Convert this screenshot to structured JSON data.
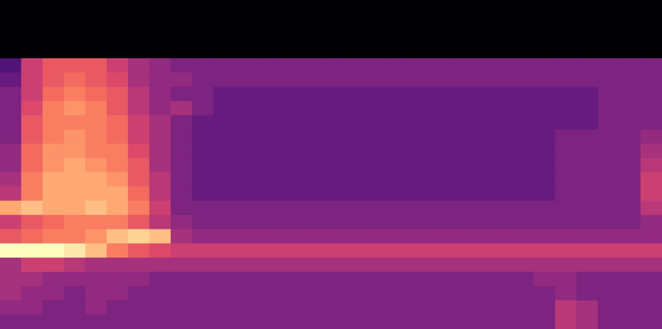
{
  "chart_data": {
    "type": "heatmap",
    "tick_labels": false,
    "zlim": [
      0,
      10
    ],
    "cells": [
      [
        2,
        5,
        6,
        6,
        6,
        5,
        4,
        3.5,
        3,
        3,
        3,
        3,
        3,
        3,
        3,
        3,
        3,
        3,
        3,
        3,
        3,
        3,
        3,
        3,
        3,
        3,
        3,
        3,
        3,
        3,
        3
      ],
      [
        2.5,
        5,
        6,
        6.5,
        6,
        5.5,
        4,
        3.5,
        3.5,
        3,
        3,
        3,
        3,
        3,
        3,
        3,
        3,
        3,
        3,
        3,
        3,
        3,
        3,
        3,
        3,
        3,
        3,
        3,
        3,
        3,
        3
      ],
      [
        3,
        5,
        6.5,
        7,
        6.5,
        6,
        4.5,
        3.5,
        3,
        3,
        2.5,
        2.5,
        2.5,
        2.5,
        2.5,
        2.5,
        2.5,
        2.5,
        2.5,
        2.5,
        2.5,
        2.5,
        2.5,
        2.5,
        2.5,
        2.5,
        2.5,
        2.5,
        3,
        3,
        3
      ],
      [
        3,
        5.5,
        7,
        7.5,
        7,
        6,
        4.5,
        3.5,
        4,
        3,
        2.5,
        2.5,
        2.5,
        2.5,
        2.5,
        2.5,
        2.5,
        2.5,
        2.5,
        2.5,
        2.5,
        2.5,
        2.5,
        2.5,
        2.5,
        2.5,
        2.5,
        2.5,
        3,
        3,
        3
      ],
      [
        3,
        6,
        7,
        7,
        7,
        6.5,
        5,
        4,
        3,
        2.5,
        2.5,
        2.5,
        2.5,
        2.5,
        2.5,
        2.5,
        2.5,
        2.5,
        2.5,
        2.5,
        2.5,
        2.5,
        2.5,
        2.5,
        2.5,
        2.5,
        2.5,
        2.5,
        3,
        3,
        3
      ],
      [
        3,
        6,
        7,
        7.5,
        7,
        6.5,
        5,
        4,
        3,
        2.5,
        2.5,
        2.5,
        2.5,
        2.5,
        2.5,
        2.5,
        2.5,
        2.5,
        2.5,
        2.5,
        2.5,
        2.5,
        2.5,
        2.5,
        2.5,
        2.5,
        3,
        3,
        3,
        3,
        3.5
      ],
      [
        3.5,
        6.5,
        7.5,
        7.5,
        7,
        7,
        5.5,
        4,
        3,
        2.5,
        2.5,
        2.5,
        2.5,
        2.5,
        2.5,
        2.5,
        2.5,
        2.5,
        2.5,
        2.5,
        2.5,
        2.5,
        2.5,
        2.5,
        2.5,
        2.5,
        3,
        3,
        3,
        3,
        4
      ],
      [
        3.5,
        6.5,
        7.5,
        8,
        7.5,
        7,
        6,
        4,
        3,
        2.5,
        2.5,
        2.5,
        2.5,
        2.5,
        2.5,
        2.5,
        2.5,
        2.5,
        2.5,
        2.5,
        2.5,
        2.5,
        2.5,
        2.5,
        2.5,
        2.5,
        3,
        3,
        3,
        3,
        4.5
      ],
      [
        4,
        7,
        8,
        8,
        8,
        7.5,
        6,
        4.5,
        3,
        2.5,
        2.5,
        2.5,
        2.5,
        2.5,
        2.5,
        2.5,
        2.5,
        2.5,
        2.5,
        2.5,
        2.5,
        2.5,
        2.5,
        2.5,
        2.5,
        2.5,
        3,
        3,
        3,
        3,
        5
      ],
      [
        4.5,
        7,
        8,
        8,
        8,
        8,
        6.5,
        4.5,
        3,
        2.5,
        2.5,
        2.5,
        2.5,
        2.5,
        2.5,
        2.5,
        2.5,
        2.5,
        2.5,
        2.5,
        2.5,
        2.5,
        2.5,
        2.5,
        2.5,
        2.5,
        3,
        3,
        3,
        3,
        5
      ],
      [
        8,
        8.5,
        8,
        8,
        8.5,
        8,
        7,
        5,
        3,
        3,
        3,
        3,
        3,
        3,
        3,
        3,
        3,
        3,
        3,
        3,
        3,
        3,
        3,
        3,
        3,
        3,
        3,
        3,
        3,
        3,
        4.5
      ],
      [
        5,
        6,
        6.5,
        7,
        7,
        7,
        6,
        4.5,
        3.5,
        3,
        3,
        3,
        3,
        3,
        3,
        3,
        3,
        3,
        3,
        3,
        3,
        3,
        3,
        3,
        3,
        3,
        3,
        3,
        3,
        3,
        3.5
      ],
      [
        6,
        6.5,
        7,
        7,
        7.5,
        8.5,
        9,
        8.5,
        4,
        3.5,
        3.5,
        3.5,
        3.5,
        3.5,
        3.5,
        3.5,
        3.5,
        3.5,
        3.5,
        3.5,
        3.5,
        3.5,
        3.5,
        3.5,
        3.5,
        3.5,
        3.5,
        3.5,
        3.5,
        3.5,
        3.5
      ],
      [
        10,
        10,
        10,
        9.5,
        8.5,
        7,
        6,
        5.5,
        5,
        5,
        5,
        5,
        5,
        5,
        5,
        5,
        5,
        5,
        5,
        5,
        5,
        5,
        5,
        5,
        5,
        5,
        5,
        5,
        5,
        5,
        5
      ],
      [
        4,
        5,
        5,
        4.5,
        4,
        4,
        4,
        4,
        4,
        4,
        4,
        4,
        4,
        4,
        4,
        4,
        4,
        4,
        4,
        4,
        4,
        4,
        4,
        4,
        4,
        4,
        4,
        4,
        4,
        4,
        4
      ],
      [
        4,
        4,
        3.5,
        3.5,
        3.5,
        3.5,
        3.5,
        3,
        3,
        3,
        3,
        3,
        3,
        3,
        3,
        3,
        3,
        3,
        3,
        3,
        3,
        3,
        3,
        3,
        3,
        3.5,
        3.5,
        3,
        3,
        3,
        3
      ],
      [
        4,
        3.5,
        3.5,
        3,
        3.5,
        3.5,
        3,
        3,
        3,
        3,
        3,
        3,
        3,
        3,
        3,
        3,
        3,
        3,
        3,
        3,
        3,
        3,
        3,
        3,
        3,
        3,
        3.5,
        3,
        3,
        3,
        3
      ],
      [
        3.5,
        3.5,
        3,
        3,
        3.5,
        3,
        3,
        3,
        3,
        3,
        3,
        3,
        3,
        3,
        3,
        3,
        3,
        3,
        3,
        3,
        3,
        3,
        3,
        3,
        3,
        3,
        4.5,
        4,
        3,
        3,
        3
      ],
      [
        3,
        3,
        3,
        3,
        3,
        3,
        3,
        3,
        3,
        3,
        3,
        3,
        3,
        3,
        3,
        3,
        3,
        3,
        3,
        3,
        3,
        3,
        3,
        3,
        3,
        3,
        4.5,
        4,
        3,
        3,
        3
      ]
    ]
  }
}
